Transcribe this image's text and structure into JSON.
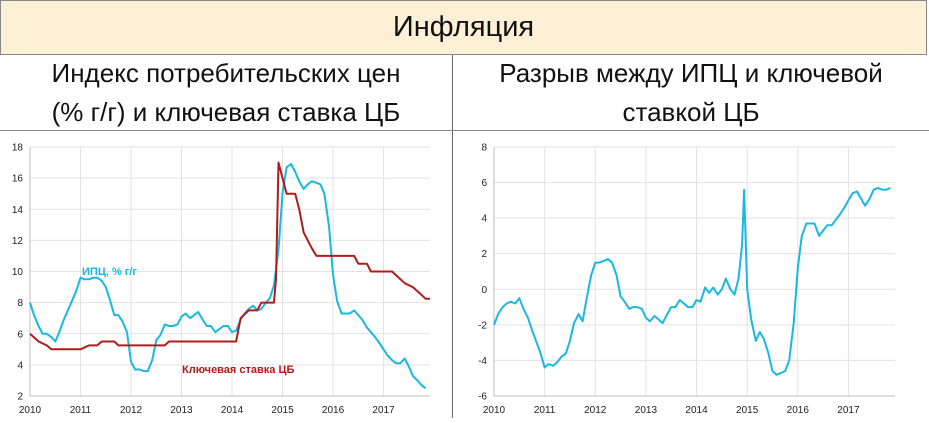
{
  "title": "Инфляция",
  "panels": [
    {
      "title_lines": [
        "Индекс потребительских цен",
        "(% г/г) и ключевая ставка ЦБ"
      ]
    },
    {
      "title_lines": [
        "Разрыв между ИПЦ и ключевой",
        "ставкой ЦБ"
      ]
    }
  ],
  "colors": {
    "cpi": "#1ab8e0",
    "rate": "#b01c1c",
    "gap": "#1ab8e0",
    "title_bg": "#fdf0d6"
  },
  "chart_data": [
    {
      "type": "line",
      "title": "",
      "xlabel": "",
      "ylabel": "",
      "x_ticks": [
        "2010",
        "2011",
        "2012",
        "2013",
        "2014",
        "2015",
        "2016",
        "2017"
      ],
      "y_ticks": [
        "2",
        "4",
        "6",
        "8",
        "10",
        "12",
        "14",
        "16",
        "18"
      ],
      "xlim": [
        2010.0,
        2017.92
      ],
      "ylim": [
        2,
        18
      ],
      "grid": true,
      "series": [
        {
          "name": "ИПЦ, % г/г",
          "color": "#1ab8e0",
          "points": [
            [
              2010.0,
              8.0
            ],
            [
              2010.08,
              7.2
            ],
            [
              2010.17,
              6.5
            ],
            [
              2010.25,
              6.0
            ],
            [
              2010.33,
              6.0
            ],
            [
              2010.42,
              5.8
            ],
            [
              2010.5,
              5.5
            ],
            [
              2010.58,
              6.1
            ],
            [
              2010.67,
              6.9
            ],
            [
              2010.75,
              7.5
            ],
            [
              2010.83,
              8.1
            ],
            [
              2010.92,
              8.8
            ],
            [
              2011.0,
              9.6
            ],
            [
              2011.08,
              9.5
            ],
            [
              2011.17,
              9.5
            ],
            [
              2011.25,
              9.6
            ],
            [
              2011.33,
              9.6
            ],
            [
              2011.42,
              9.4
            ],
            [
              2011.5,
              9.0
            ],
            [
              2011.58,
              8.2
            ],
            [
              2011.67,
              7.2
            ],
            [
              2011.75,
              7.2
            ],
            [
              2011.83,
              6.8
            ],
            [
              2011.92,
              6.1
            ],
            [
              2012.0,
              4.2
            ],
            [
              2012.08,
              3.7
            ],
            [
              2012.17,
              3.7
            ],
            [
              2012.25,
              3.6
            ],
            [
              2012.33,
              3.6
            ],
            [
              2012.42,
              4.3
            ],
            [
              2012.5,
              5.6
            ],
            [
              2012.58,
              5.9
            ],
            [
              2012.67,
              6.6
            ],
            [
              2012.75,
              6.5
            ],
            [
              2012.83,
              6.5
            ],
            [
              2012.92,
              6.6
            ],
            [
              2013.0,
              7.1
            ],
            [
              2013.08,
              7.3
            ],
            [
              2013.17,
              7.0
            ],
            [
              2013.25,
              7.2
            ],
            [
              2013.33,
              7.4
            ],
            [
              2013.42,
              6.9
            ],
            [
              2013.5,
              6.5
            ],
            [
              2013.58,
              6.5
            ],
            [
              2013.67,
              6.1
            ],
            [
              2013.75,
              6.3
            ],
            [
              2013.83,
              6.5
            ],
            [
              2013.92,
              6.5
            ],
            [
              2014.0,
              6.1
            ],
            [
              2014.08,
              6.2
            ],
            [
              2014.17,
              6.9
            ],
            [
              2014.25,
              7.3
            ],
            [
              2014.33,
              7.6
            ],
            [
              2014.42,
              7.8
            ],
            [
              2014.5,
              7.5
            ],
            [
              2014.58,
              7.6
            ],
            [
              2014.67,
              8.0
            ],
            [
              2014.75,
              8.3
            ],
            [
              2014.83,
              9.1
            ],
            [
              2014.92,
              11.4
            ],
            [
              2015.0,
              15.0
            ],
            [
              2015.08,
              16.7
            ],
            [
              2015.17,
              16.9
            ],
            [
              2015.25,
              16.4
            ],
            [
              2015.33,
              15.8
            ],
            [
              2015.42,
              15.3
            ],
            [
              2015.5,
              15.6
            ],
            [
              2015.58,
              15.8
            ],
            [
              2015.67,
              15.7
            ],
            [
              2015.75,
              15.6
            ],
            [
              2015.83,
              15.0
            ],
            [
              2015.92,
              12.9
            ],
            [
              2016.0,
              9.8
            ],
            [
              2016.08,
              8.1
            ],
            [
              2016.17,
              7.3
            ],
            [
              2016.25,
              7.3
            ],
            [
              2016.33,
              7.3
            ],
            [
              2016.42,
              7.5
            ],
            [
              2016.5,
              7.2
            ],
            [
              2016.58,
              6.9
            ],
            [
              2016.67,
              6.4
            ],
            [
              2016.75,
              6.1
            ],
            [
              2016.83,
              5.8
            ],
            [
              2016.92,
              5.4
            ],
            [
              2017.0,
              5.0
            ],
            [
              2017.08,
              4.6
            ],
            [
              2017.17,
              4.3
            ],
            [
              2017.25,
              4.1
            ],
            [
              2017.33,
              4.1
            ],
            [
              2017.42,
              4.4
            ],
            [
              2017.5,
              3.9
            ],
            [
              2017.58,
              3.3
            ],
            [
              2017.67,
              3.0
            ],
            [
              2017.75,
              2.7
            ],
            [
              2017.83,
              2.5
            ]
          ]
        },
        {
          "name": "Ключевая ставка ЦБ",
          "color": "#b01c1c",
          "points": [
            [
              2010.0,
              6.0
            ],
            [
              2010.17,
              5.5
            ],
            [
              2010.33,
              5.25
            ],
            [
              2010.42,
              5.0
            ],
            [
              2010.92,
              5.0
            ],
            [
              2011.0,
              5.0
            ],
            [
              2011.17,
              5.25
            ],
            [
              2011.33,
              5.25
            ],
            [
              2011.42,
              5.5
            ],
            [
              2011.67,
              5.5
            ],
            [
              2011.75,
              5.25
            ],
            [
              2012.67,
              5.25
            ],
            [
              2012.75,
              5.5
            ],
            [
              2014.08,
              5.5
            ],
            [
              2014.17,
              7.0
            ],
            [
              2014.33,
              7.5
            ],
            [
              2014.5,
              7.5
            ],
            [
              2014.58,
              8.0
            ],
            [
              2014.83,
              8.0
            ],
            [
              2014.87,
              9.5
            ],
            [
              2014.92,
              17.0
            ],
            [
              2015.08,
              15.0
            ],
            [
              2015.25,
              15.0
            ],
            [
              2015.33,
              14.0
            ],
            [
              2015.42,
              12.5
            ],
            [
              2015.58,
              11.5
            ],
            [
              2015.67,
              11.0
            ],
            [
              2016.42,
              11.0
            ],
            [
              2016.5,
              10.5
            ],
            [
              2016.67,
              10.5
            ],
            [
              2016.75,
              10.0
            ],
            [
              2017.17,
              10.0
            ],
            [
              2017.25,
              9.75
            ],
            [
              2017.42,
              9.25
            ],
            [
              2017.58,
              9.0
            ],
            [
              2017.75,
              8.5
            ],
            [
              2017.83,
              8.25
            ],
            [
              2017.92,
              8.25
            ]
          ]
        }
      ],
      "annotations": [
        {
          "text": "ИПЦ, % г/г",
          "color": "#1ab8e0"
        },
        {
          "text": "Ключевая ставка ЦБ",
          "color": "#b01c1c"
        }
      ]
    },
    {
      "type": "line",
      "title": "",
      "xlabel": "",
      "ylabel": "",
      "x_ticks": [
        "2010",
        "2011",
        "2012",
        "2013",
        "2014",
        "2015",
        "2016",
        "2017"
      ],
      "y_ticks": [
        "-6",
        "-4",
        "-2",
        "0",
        "2",
        "4",
        "6",
        "8"
      ],
      "xlim": [
        2010.0,
        2017.92
      ],
      "ylim": [
        -6,
        8
      ],
      "grid": true,
      "series": [
        {
          "name": "",
          "color": "#1ab8e0",
          "points": [
            [
              2010.0,
              -2.0
            ],
            [
              2010.08,
              -1.4
            ],
            [
              2010.17,
              -1.0
            ],
            [
              2010.25,
              -0.8
            ],
            [
              2010.33,
              -0.7
            ],
            [
              2010.42,
              -0.8
            ],
            [
              2010.5,
              -0.5
            ],
            [
              2010.58,
              -1.1
            ],
            [
              2010.67,
              -1.6
            ],
            [
              2010.75,
              -2.3
            ],
            [
              2010.83,
              -2.9
            ],
            [
              2010.92,
              -3.6
            ],
            [
              2011.0,
              -4.4
            ],
            [
              2011.08,
              -4.2
            ],
            [
              2011.17,
              -4.3
            ],
            [
              2011.25,
              -4.1
            ],
            [
              2011.33,
              -3.8
            ],
            [
              2011.42,
              -3.6
            ],
            [
              2011.5,
              -2.9
            ],
            [
              2011.58,
              -1.9
            ],
            [
              2011.67,
              -1.4
            ],
            [
              2011.75,
              -1.8
            ],
            [
              2011.83,
              -0.5
            ],
            [
              2011.92,
              0.8
            ],
            [
              2012.0,
              1.5
            ],
            [
              2012.08,
              1.5
            ],
            [
              2012.17,
              1.6
            ],
            [
              2012.25,
              1.7
            ],
            [
              2012.33,
              1.5
            ],
            [
              2012.42,
              0.8
            ],
            [
              2012.5,
              -0.4
            ],
            [
              2012.58,
              -0.7
            ],
            [
              2012.67,
              -1.1
            ],
            [
              2012.75,
              -1.0
            ],
            [
              2012.83,
              -1.0
            ],
            [
              2012.92,
              -1.1
            ],
            [
              2013.0,
              -1.6
            ],
            [
              2013.08,
              -1.8
            ],
            [
              2013.17,
              -1.5
            ],
            [
              2013.25,
              -1.7
            ],
            [
              2013.33,
              -1.9
            ],
            [
              2013.42,
              -1.4
            ],
            [
              2013.5,
              -1.0
            ],
            [
              2013.58,
              -1.0
            ],
            [
              2013.67,
              -0.6
            ],
            [
              2013.75,
              -0.8
            ],
            [
              2013.83,
              -1.0
            ],
            [
              2013.92,
              -1.0
            ],
            [
              2014.0,
              -0.6
            ],
            [
              2014.08,
              -0.7
            ],
            [
              2014.17,
              0.1
            ],
            [
              2014.25,
              -0.2
            ],
            [
              2014.33,
              0.1
            ],
            [
              2014.42,
              -0.3
            ],
            [
              2014.5,
              0.0
            ],
            [
              2014.58,
              0.6
            ],
            [
              2014.67,
              0.0
            ],
            [
              2014.75,
              -0.3
            ],
            [
              2014.83,
              0.6
            ],
            [
              2014.9,
              2.5
            ],
            [
              2014.94,
              5.6
            ],
            [
              2015.0,
              0.0
            ],
            [
              2015.08,
              -1.7
            ],
            [
              2015.17,
              -2.9
            ],
            [
              2015.25,
              -2.4
            ],
            [
              2015.33,
              -2.8
            ],
            [
              2015.42,
              -3.6
            ],
            [
              2015.5,
              -4.6
            ],
            [
              2015.58,
              -4.8
            ],
            [
              2015.67,
              -4.7
            ],
            [
              2015.75,
              -4.6
            ],
            [
              2015.83,
              -4.0
            ],
            [
              2015.92,
              -1.9
            ],
            [
              2016.0,
              1.2
            ],
            [
              2016.08,
              3.0
            ],
            [
              2016.17,
              3.7
            ],
            [
              2016.25,
              3.7
            ],
            [
              2016.33,
              3.7
            ],
            [
              2016.42,
              3.0
            ],
            [
              2016.5,
              3.3
            ],
            [
              2016.58,
              3.6
            ],
            [
              2016.67,
              3.6
            ],
            [
              2016.75,
              3.9
            ],
            [
              2016.83,
              4.2
            ],
            [
              2016.92,
              4.6
            ],
            [
              2017.0,
              5.0
            ],
            [
              2017.08,
              5.4
            ],
            [
              2017.17,
              5.5
            ],
            [
              2017.25,
              5.1
            ],
            [
              2017.33,
              4.7
            ],
            [
              2017.42,
              5.1
            ],
            [
              2017.5,
              5.6
            ],
            [
              2017.58,
              5.7
            ],
            [
              2017.67,
              5.6
            ],
            [
              2017.75,
              5.6
            ],
            [
              2017.83,
              5.7
            ]
          ]
        }
      ],
      "annotations": []
    }
  ]
}
